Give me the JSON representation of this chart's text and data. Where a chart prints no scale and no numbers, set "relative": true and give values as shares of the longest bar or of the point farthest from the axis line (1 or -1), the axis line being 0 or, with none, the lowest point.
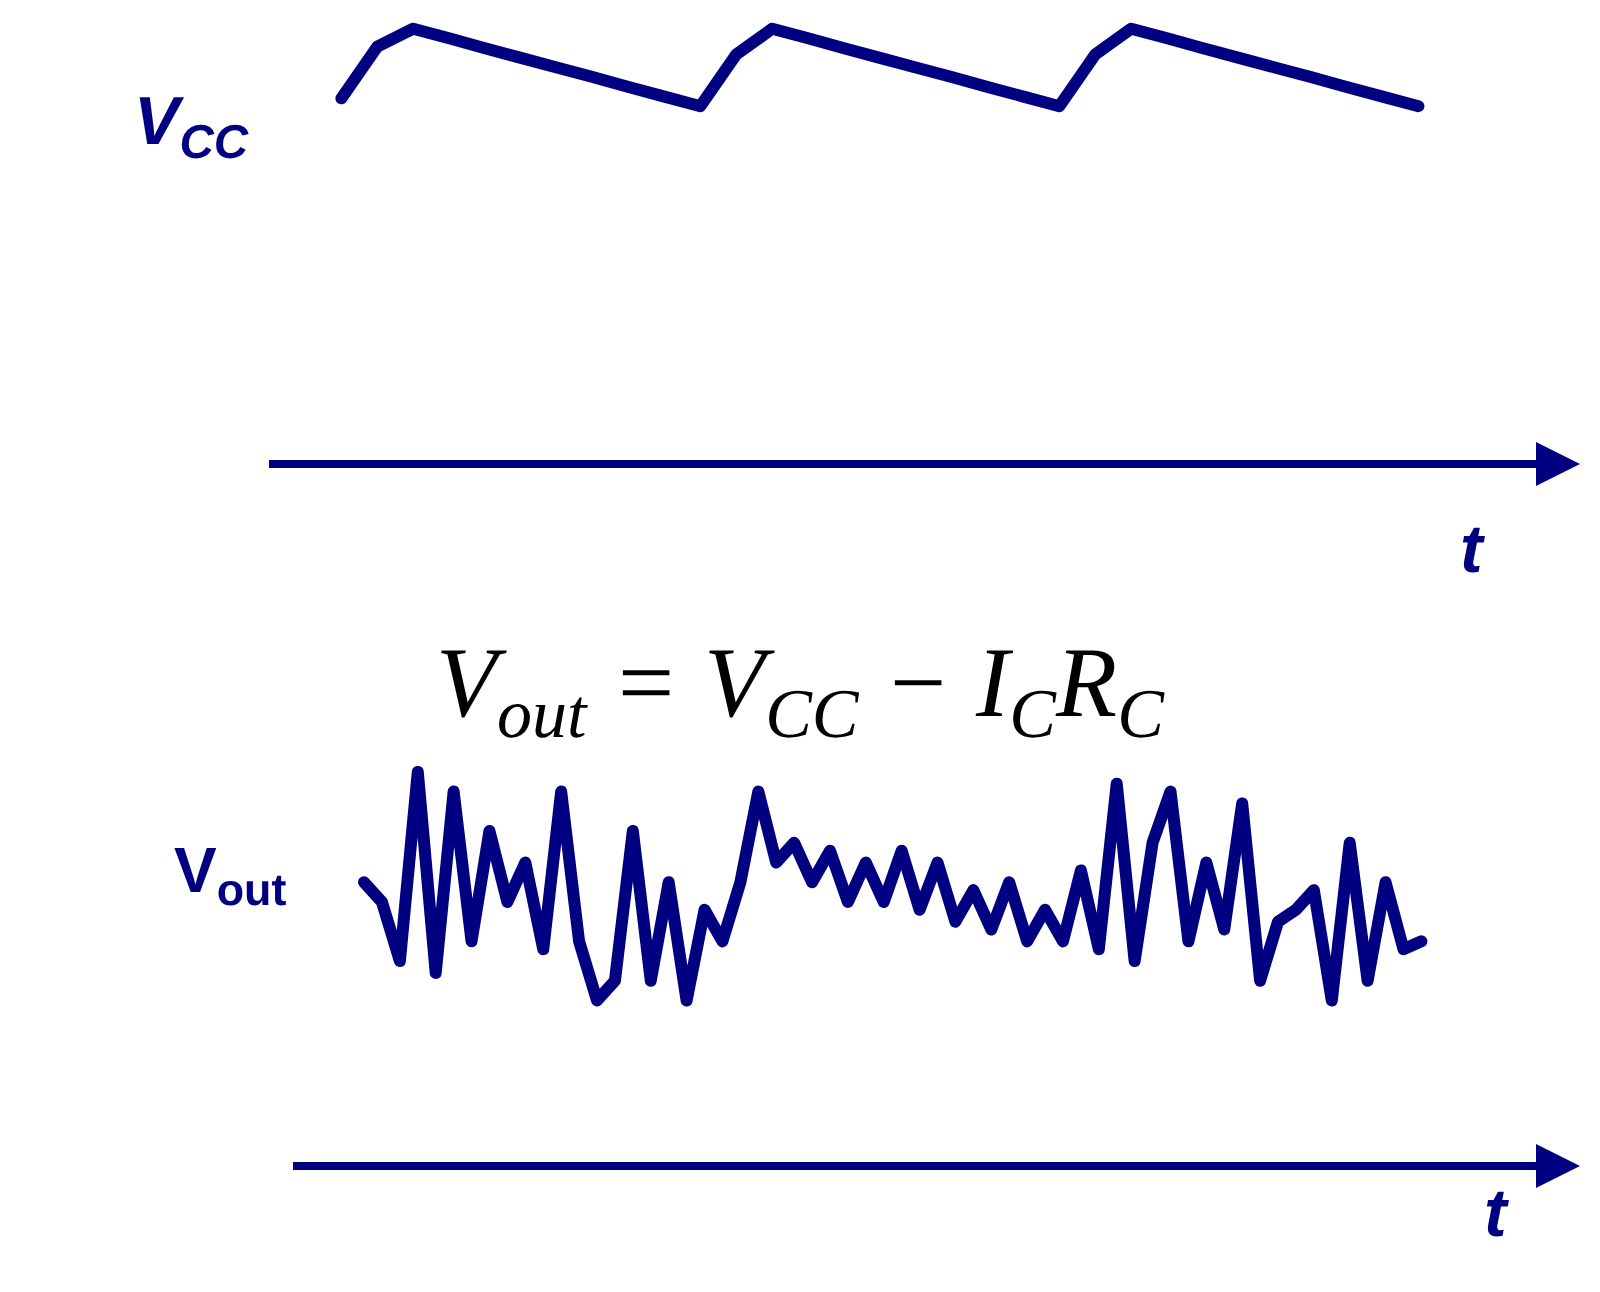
{
  "chart_data": [
    {
      "type": "line",
      "relative": true,
      "ylabel": "V$_{CC}$",
      "xlabel": "t",
      "annotations": [
        "V$_{out}$ = V$_{CC}$ − I$_{C}$R$_{C}$"
      ],
      "categories": [
        null,
        null,
        null,
        null,
        null,
        null,
        null,
        null,
        null,
        null,
        null,
        null,
        null,
        null,
        null,
        null,
        null,
        null,
        null,
        null,
        null,
        null,
        null,
        null,
        null,
        null,
        null,
        null,
        null,
        null,
        null
      ],
      "series": [
        {
          "color": "#000080",
          "values": [
            0.84,
            0.959,
            1,
            0.978,
            0.955,
            0.933,
            0.911,
            0.889,
            0.866,
            0.844,
            0.822,
            0.941,
            1,
            0.978,
            0.955,
            0.933,
            0.911,
            0.889,
            0.866,
            0.844,
            0.822,
            0.941,
            1,
            0.978,
            0.955,
            0.933,
            0.911,
            0.889,
            0.866,
            0.844,
            0.822
          ]
        }
      ],
      "marker": "none",
      "line_style": "solid"
    },
    {
      "type": "line",
      "relative": true,
      "ylabel": "V$_{out}$",
      "xlabel": "t",
      "categories": [
        null,
        null,
        null,
        null,
        null,
        null,
        null,
        null,
        null,
        null,
        null,
        null,
        null,
        null,
        null,
        null,
        null,
        null,
        null,
        null,
        null,
        null,
        null,
        null,
        null,
        null,
        null,
        null,
        null,
        null,
        null,
        null,
        null,
        null,
        null,
        null,
        null,
        null,
        null,
        null,
        null,
        null,
        null,
        null,
        null,
        null,
        null,
        null,
        null,
        null,
        null,
        null,
        null,
        null,
        null,
        null,
        null,
        null,
        null,
        null
      ],
      "series": [
        {
          "color": "#000080",
          "values": [
            0.72,
            0.67,
            0.52,
            1.0,
            0.49,
            0.95,
            0.57,
            0.85,
            0.67,
            0.77,
            0.55,
            0.95,
            0.57,
            0.42,
            0.47,
            0.85,
            0.47,
            0.72,
            0.42,
            0.65,
            0.57,
            0.72,
            0.95,
            0.77,
            0.82,
            0.72,
            0.8,
            0.67,
            0.77,
            0.67,
            0.8,
            0.65,
            0.77,
            0.62,
            0.7,
            0.6,
            0.72,
            0.57,
            0.65,
            0.57,
            0.75,
            0.55,
            0.97,
            0.52,
            0.82,
            0.95,
            0.57,
            0.77,
            0.6,
            0.92,
            0.47,
            0.62,
            0.65,
            0.7,
            0.42,
            0.82,
            0.47,
            0.72,
            0.55,
            0.57
          ]
        }
      ],
      "marker": "none",
      "line_style": "solid"
    }
  ]
}
